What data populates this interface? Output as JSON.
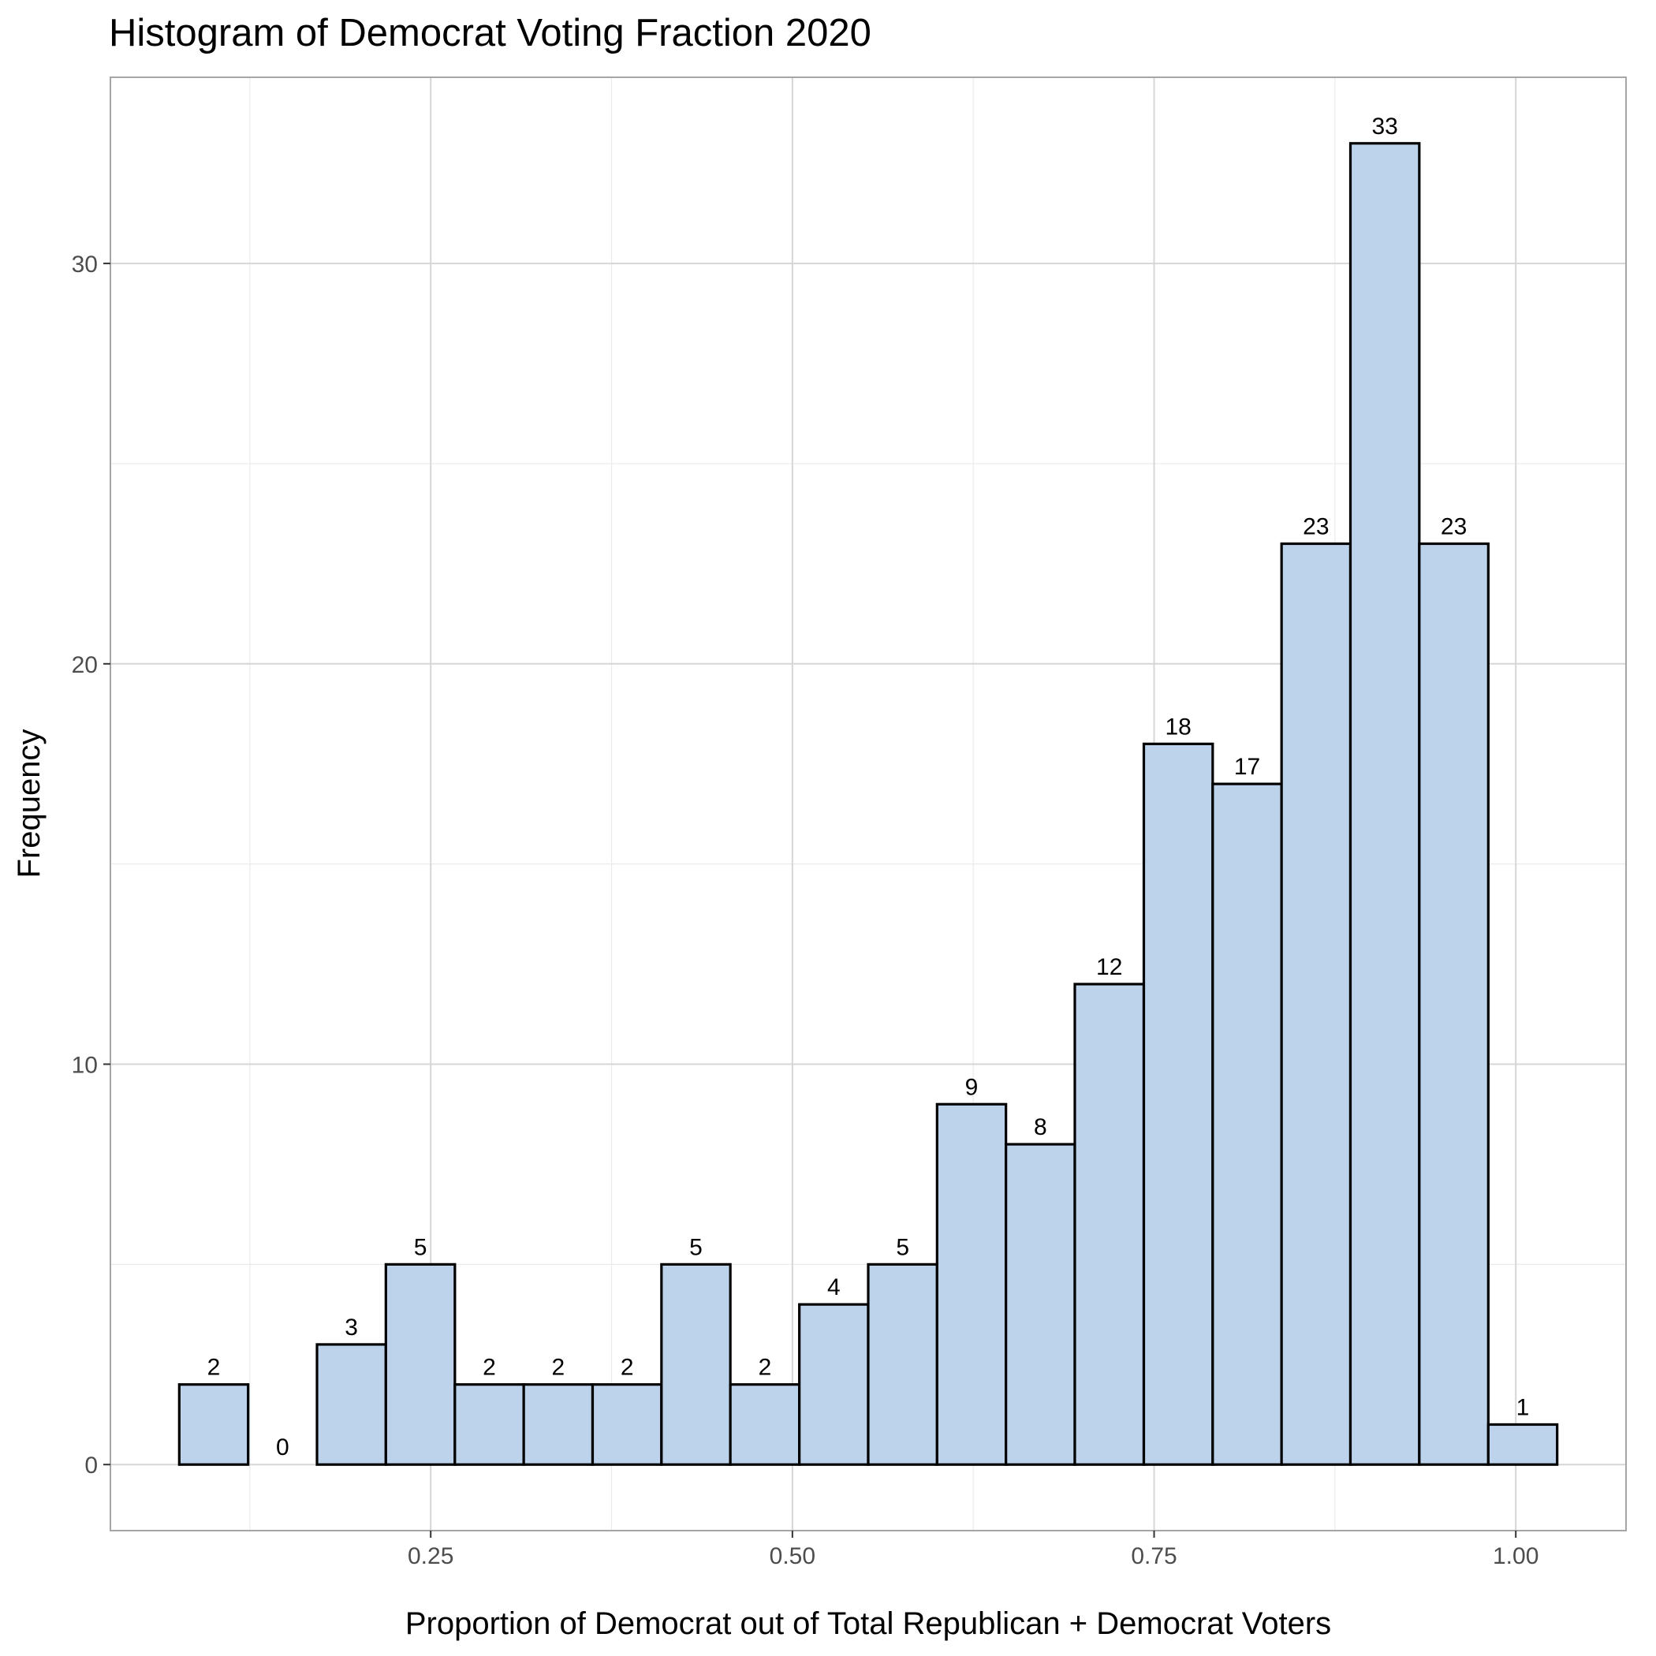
{
  "chart_data": {
    "type": "bar",
    "title": "Histogram of Democrat Voting Fraction 2020",
    "xlabel": "Proportion of Democrat out of Total Republican + Democrat Voters",
    "ylabel": "Frequency",
    "bin_width": 0.0476,
    "bins": [
      {
        "x_start": 0.0762,
        "x_end": 0.1238,
        "count": 2
      },
      {
        "x_start": 0.1238,
        "x_end": 0.1714,
        "count": 0
      },
      {
        "x_start": 0.1714,
        "x_end": 0.219,
        "count": 3
      },
      {
        "x_start": 0.219,
        "x_end": 0.2667,
        "count": 5
      },
      {
        "x_start": 0.2667,
        "x_end": 0.3143,
        "count": 2
      },
      {
        "x_start": 0.3143,
        "x_end": 0.3619,
        "count": 2
      },
      {
        "x_start": 0.3619,
        "x_end": 0.4095,
        "count": 2
      },
      {
        "x_start": 0.4095,
        "x_end": 0.4571,
        "count": 5
      },
      {
        "x_start": 0.4571,
        "x_end": 0.5048,
        "count": 2
      },
      {
        "x_start": 0.5048,
        "x_end": 0.5524,
        "count": 4
      },
      {
        "x_start": 0.5524,
        "x_end": 0.6,
        "count": 5
      },
      {
        "x_start": 0.6,
        "x_end": 0.6476,
        "count": 9
      },
      {
        "x_start": 0.6476,
        "x_end": 0.6952,
        "count": 8
      },
      {
        "x_start": 0.6952,
        "x_end": 0.7429,
        "count": 12
      },
      {
        "x_start": 0.7429,
        "x_end": 0.7905,
        "count": 18
      },
      {
        "x_start": 0.7905,
        "x_end": 0.8381,
        "count": 17
      },
      {
        "x_start": 0.8381,
        "x_end": 0.8857,
        "count": 23
      },
      {
        "x_start": 0.8857,
        "x_end": 0.9333,
        "count": 33
      },
      {
        "x_start": 0.9333,
        "x_end": 0.981,
        "count": 23
      },
      {
        "x_start": 0.981,
        "x_end": 1.0286,
        "count": 1
      }
    ],
    "x_ticks": [
      "0.25",
      "0.50",
      "0.75",
      "1.00"
    ],
    "y_ticks": [
      "0",
      "10",
      "20",
      "30"
    ],
    "xlim": [
      0.0286,
      1.0762
    ],
    "ylim": [
      -1.65,
      34.65
    ],
    "grid": true,
    "colors": {
      "bar_fill": "#BDD3EC",
      "bar_stroke": "#000000",
      "grid_major": "#D6D6D6",
      "grid_minor": "#EBEBEB",
      "panel_border": "#A6A6A6",
      "tick_text": "#4D4D4D",
      "text": "#000000"
    }
  }
}
